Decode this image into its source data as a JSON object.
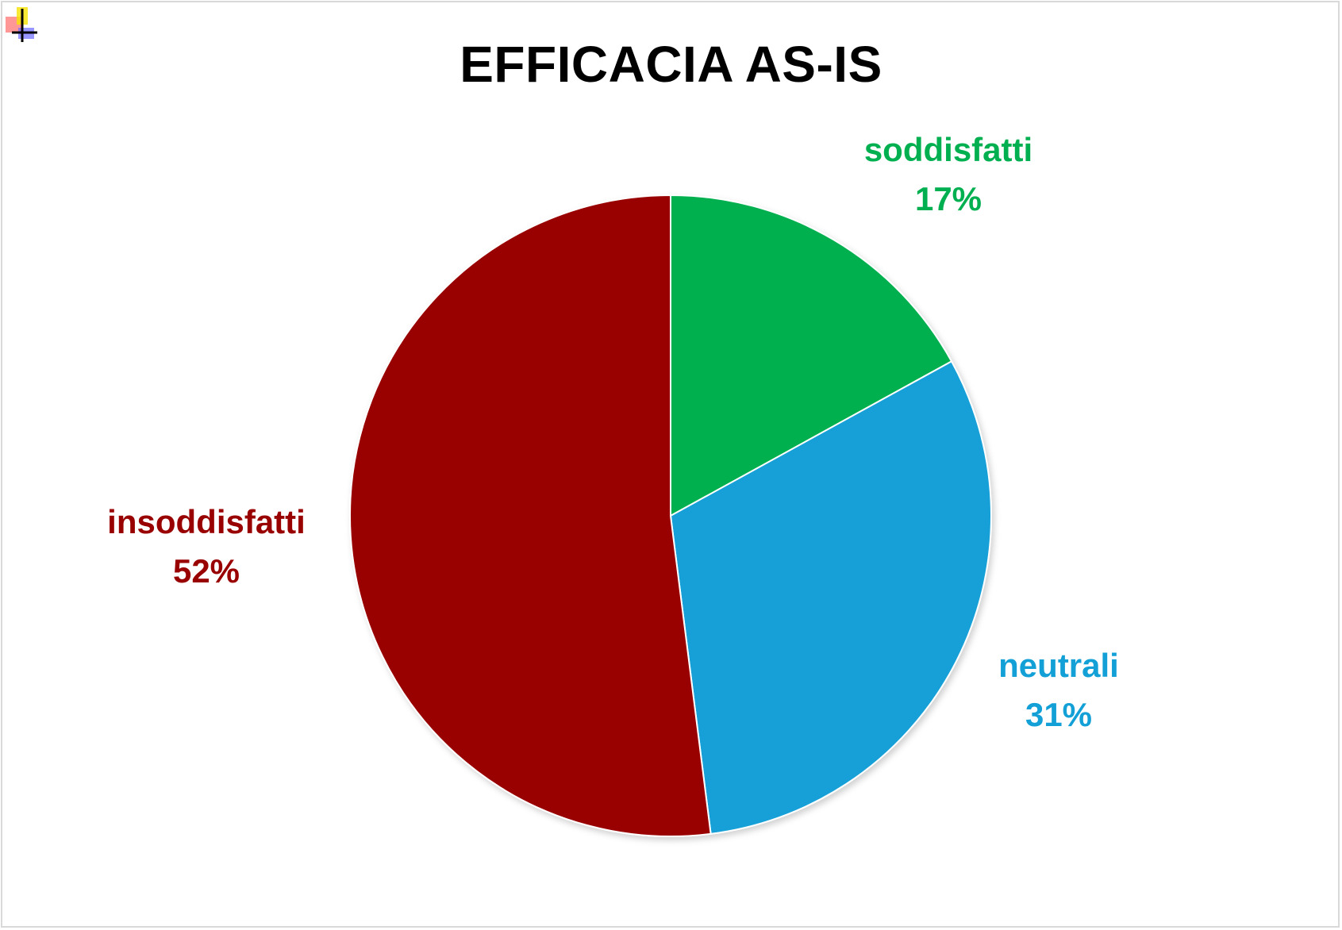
{
  "chart_data": {
    "type": "pie",
    "title": "EFFICACIA AS-IS",
    "slices": [
      {
        "label": "soddisfatti",
        "value": 17,
        "value_label": "17%",
        "color": "#00B050"
      },
      {
        "label": "neutrali",
        "value": 31,
        "value_label": "31%",
        "color": "#12A0D7"
      },
      {
        "label": "insoddisfatti",
        "value": 52,
        "value_label": "52%",
        "color": "#990000"
      }
    ],
    "start_angle": "12 o'clock",
    "direction": "clockwise",
    "legend": "none",
    "data_labels": "outside, category name and percentage"
  },
  "icons": [
    "cursor-crosshair-icon"
  ]
}
